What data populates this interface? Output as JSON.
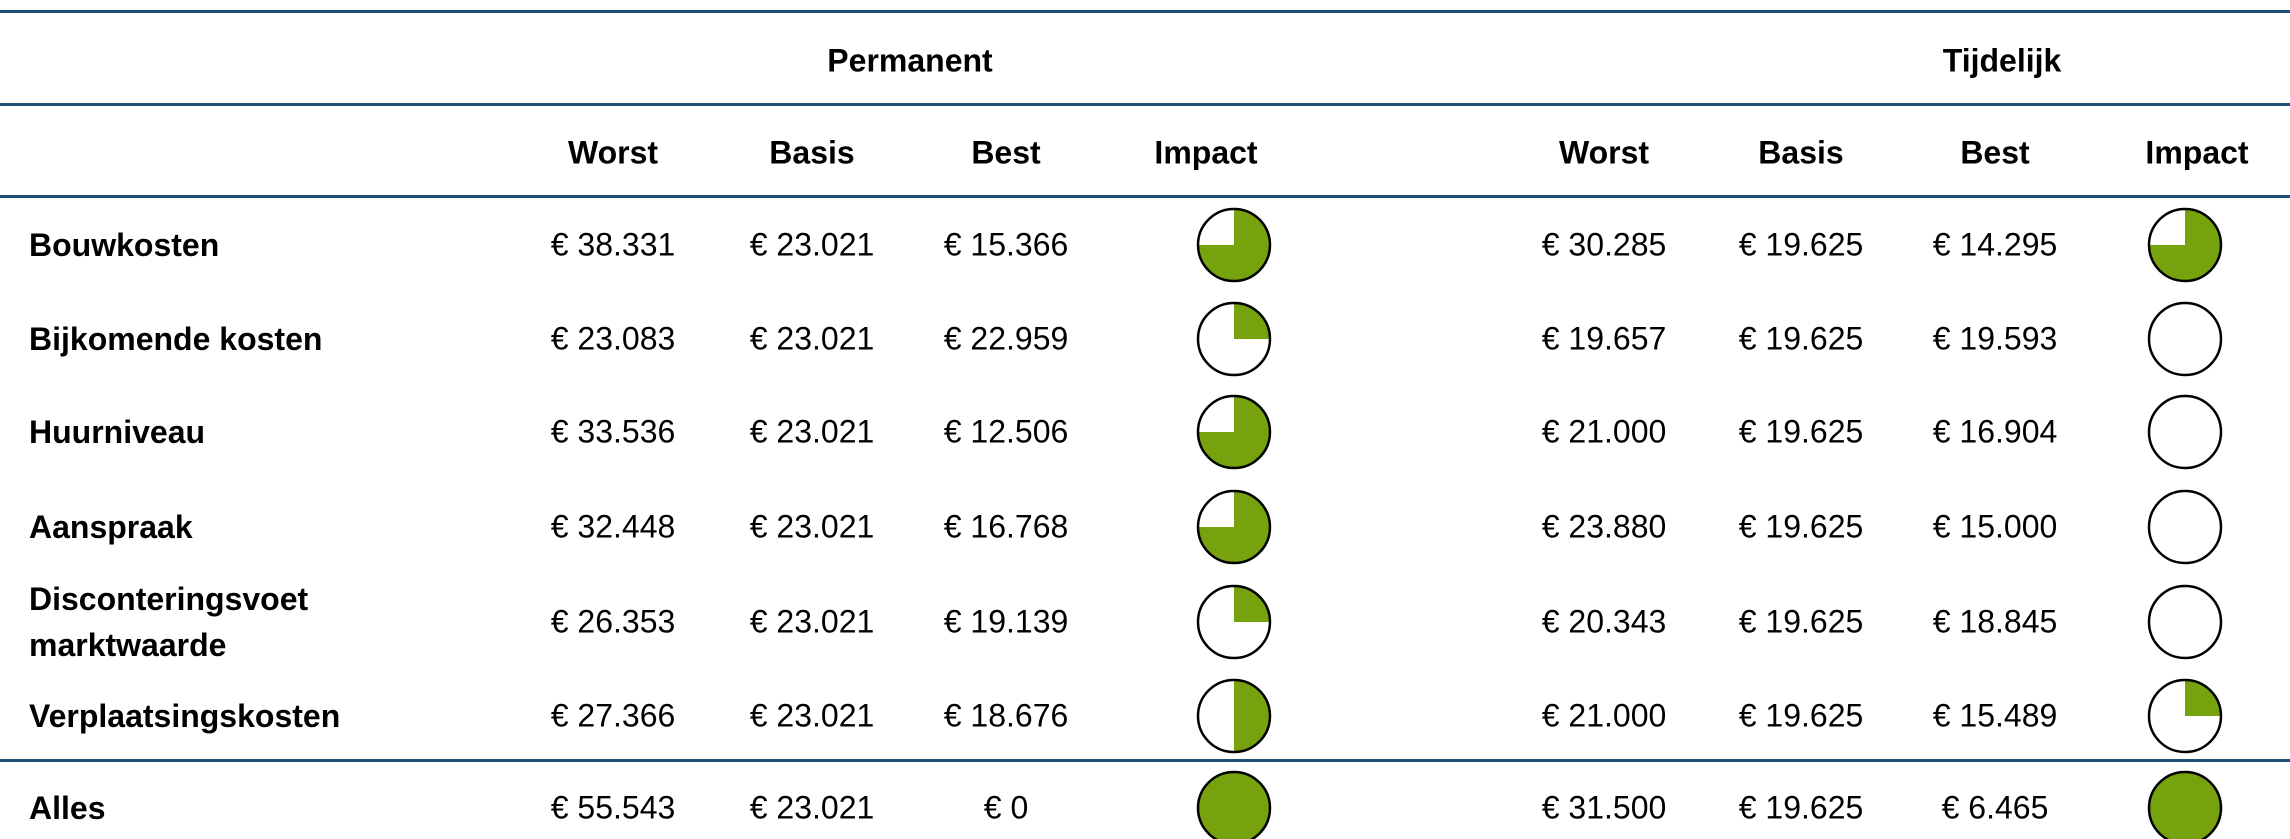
{
  "table": {
    "groups": [
      "Permanent",
      "Tijdelijk"
    ],
    "columns": [
      "Worst",
      "Basis",
      "Best",
      "Impact"
    ],
    "rows": [
      {
        "label": "Bouwkosten",
        "permanent": {
          "values": [
            "€ 38.331",
            "€ 23.021",
            "€ 15.366"
          ],
          "impact": 75
        },
        "tijdelijk": {
          "values": [
            "€ 30.285",
            "€ 19.625",
            "€ 14.295"
          ],
          "impact": 75
        }
      },
      {
        "label": "Bijkomende kosten",
        "permanent": {
          "values": [
            "€ 23.083",
            "€ 23.021",
            "€ 22.959"
          ],
          "impact": 25
        },
        "tijdelijk": {
          "values": [
            "€ 19.657",
            "€ 19.625",
            "€ 19.593"
          ],
          "impact": 0
        }
      },
      {
        "label": "Huurniveau",
        "permanent": {
          "values": [
            "€ 33.536",
            "€ 23.021",
            "€ 12.506"
          ],
          "impact": 75
        },
        "tijdelijk": {
          "values": [
            "€ 21.000",
            "€ 19.625",
            "€ 16.904"
          ],
          "impact": 0
        }
      },
      {
        "label": "Aanspraak",
        "permanent": {
          "values": [
            "€ 32.448",
            "€ 23.021",
            "€ 16.768"
          ],
          "impact": 75
        },
        "tijdelijk": {
          "values": [
            "€ 23.880",
            "€ 19.625",
            "€ 15.000"
          ],
          "impact": 0
        }
      },
      {
        "label": "Disconteringsvoet marktwaarde",
        "permanent": {
          "values": [
            "€ 26.353",
            "€ 23.021",
            "€ 19.139"
          ],
          "impact": 25
        },
        "tijdelijk": {
          "values": [
            "€ 20.343",
            "€ 19.625",
            "€ 18.845"
          ],
          "impact": 0
        }
      },
      {
        "label": "Verplaatsingskosten",
        "permanent": {
          "values": [
            "€ 27.366",
            "€ 23.021",
            "€ 18.676"
          ],
          "impact": 50
        },
        "tijdelijk": {
          "values": [
            "€ 21.000",
            "€ 19.625",
            "€ 15.489"
          ],
          "impact": 25
        }
      },
      {
        "label": "Alles",
        "permanent": {
          "values": [
            "€ 55.543",
            "€ 23.021",
            "€ 0"
          ],
          "impact": 100
        },
        "tijdelijk": {
          "values": [
            "€ 31.500",
            "€ 19.625",
            "€ 6.465"
          ],
          "impact": 100
        }
      }
    ],
    "impact_color": "#76a20e"
  }
}
